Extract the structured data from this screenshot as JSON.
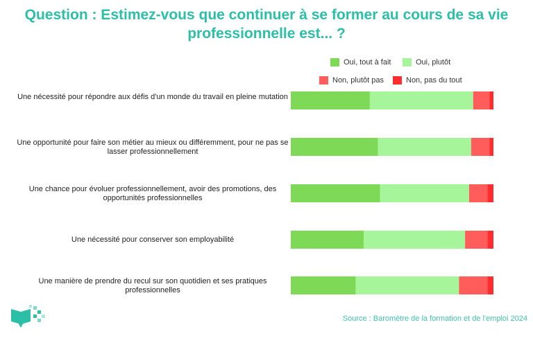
{
  "title": "Question : Estimez-vous que continuer à se former au cours de sa vie professionnelle est... ?",
  "source": "Source : Baromètre de la formation et de l'emploi 2024",
  "colors": {
    "title": "#2bbfa8",
    "series": [
      "#7ed957",
      "#a6f59a",
      "#ff5c5c",
      "#ff2d2d"
    ]
  },
  "chart_data": {
    "type": "bar",
    "orientation": "horizontal",
    "stacked": true,
    "xlim": [
      0,
      100
    ],
    "categories": [
      "Une nécessité pour répondre aux défis d'un monde du travail en pleine mutation",
      "Une opportunité pour faire son métier au mieux ou différemment, pour ne pas se lasser professionnellement",
      "Une chance pour évoluer professionnellement, avoir des promotions, des opportunités professionnelles",
      "Une nécessité pour conserver son employabilité",
      "Une manière de prendre du recul sur son quotidien et ses pratiques professionnelles"
    ],
    "series": [
      {
        "name": "Oui, tout à fait",
        "values": [
          39,
          43,
          44,
          36,
          32
        ]
      },
      {
        "name": "Oui, plutôt",
        "values": [
          51,
          46,
          44,
          50,
          51
        ]
      },
      {
        "name": "Non, plutôt pas",
        "values": [
          8,
          9,
          9,
          11,
          14
        ]
      },
      {
        "name": "Non, pas du tout",
        "values": [
          2,
          2,
          3,
          3,
          3
        ]
      }
    ],
    "legend_position": "top-right",
    "grid": false
  }
}
